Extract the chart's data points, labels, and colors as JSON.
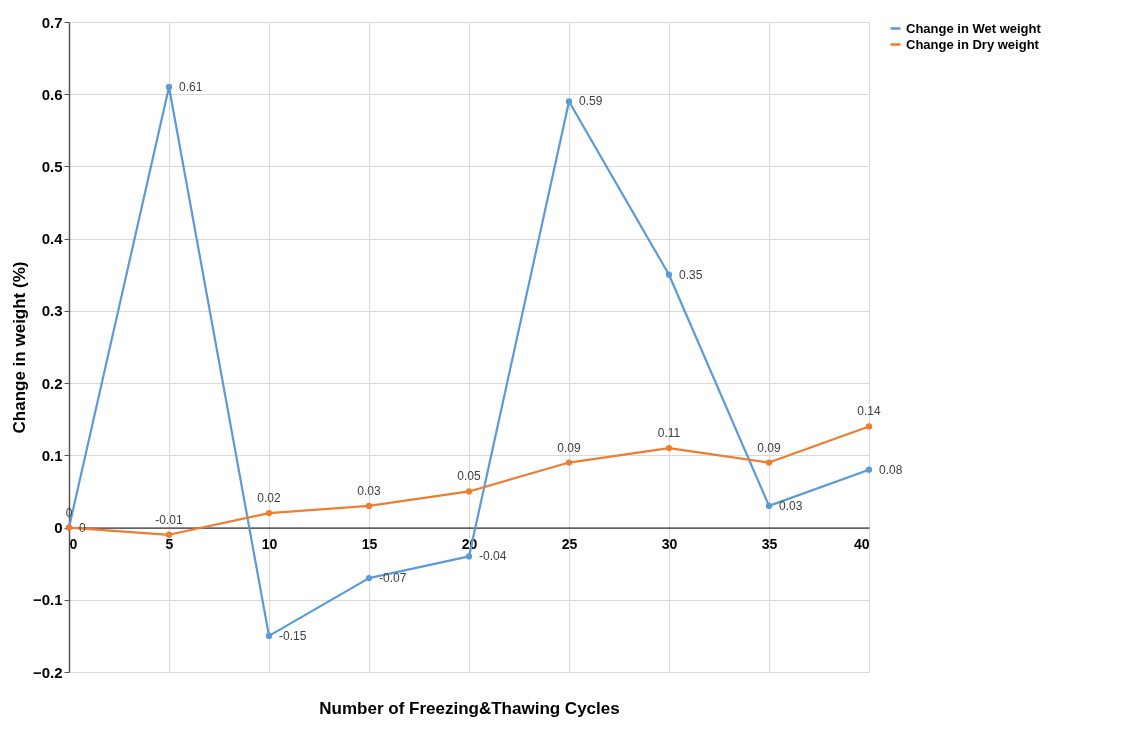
{
  "chart_data": {
    "type": "line",
    "xlabel": "Number of Freezing&Thawing Cycles",
    "ylabel": "Change in  weight (%)",
    "x": [
      0,
      5,
      10,
      15,
      20,
      25,
      30,
      35,
      40
    ],
    "series": [
      {
        "name": "Change in Wet weight",
        "color": "#5b9bd5",
        "values": [
          0,
          0.61,
          -0.15,
          -0.07,
          -0.04,
          0.59,
          0.35,
          0.03,
          0.08
        ]
      },
      {
        "name": "Change in Dry weight",
        "color": "#ed7d31",
        "values": [
          0,
          -0.01,
          0.02,
          0.03,
          0.05,
          0.09,
          0.11,
          0.09,
          0.14
        ]
      }
    ],
    "xlim": [
      0,
      40
    ],
    "xticks": [
      0,
      5,
      10,
      15,
      20,
      25,
      30,
      35,
      40
    ],
    "ylim": [
      -0.2,
      0.7
    ],
    "yticks": [
      -0.2,
      -0.1,
      0,
      0.1,
      0.2,
      0.3,
      0.4,
      0.5,
      0.6,
      0.7
    ],
    "grid": true,
    "legend": "right",
    "marker": "circle",
    "line_style": "solid",
    "data_labels": true
  }
}
